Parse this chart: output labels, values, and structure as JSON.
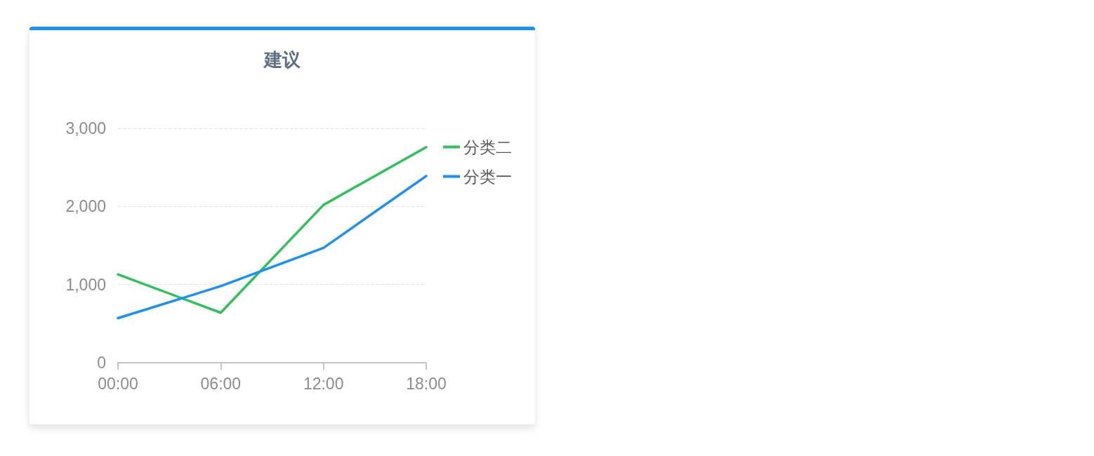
{
  "chart_data": {
    "type": "line",
    "title": "建议",
    "categories": [
      "00:00",
      "06:00",
      "12:00",
      "18:00"
    ],
    "series": [
      {
        "name": "分类二",
        "color": "#2fc25b",
        "values": [
          1130,
          640,
          2020,
          2760
        ]
      },
      {
        "name": "分类一",
        "color": "#1890ff",
        "values": [
          570,
          980,
          1470,
          2390
        ]
      }
    ],
    "ylim": [
      0,
      3000
    ],
    "yticks": [
      0,
      {
        "value": 1000,
        "label": "1,000"
      },
      {
        "value": 2000,
        "label": "2,000"
      },
      {
        "value": 3000,
        "label": "3,000"
      }
    ],
    "grid": "y",
    "legend": "top right",
    "marker": "none"
  }
}
